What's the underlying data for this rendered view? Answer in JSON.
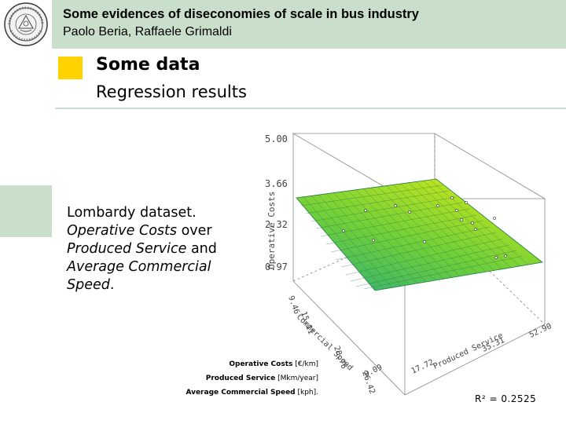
{
  "header": {
    "title": "Some evidences of diseconomies of scale in bus industry",
    "authors": "Paolo Beria, Raffaele Grimaldi"
  },
  "section": {
    "title": "Some data",
    "subtitle": "Regression results"
  },
  "description": {
    "line1": "Lombardy dataset.",
    "line2_italic": "Operative Costs",
    "line2_rest": " over",
    "line3_italic": "Produced Service",
    "line3_rest": " and",
    "line4_italic": "Average Commercial",
    "line5_italic": "Speed",
    "line5_rest": "."
  },
  "chart": {
    "type": "surface-3d",
    "z_axis_label": "Operative Costs",
    "z_ticks": [
      "5.00",
      "3.66",
      "2.32",
      "0.97"
    ],
    "y_axis_label": "Commercial Speed",
    "y_ticks": [
      "9.46",
      "15.11",
      "20.76",
      "26.42"
    ],
    "x_axis_label": "Produced Service",
    "x_ticks": [
      "0.09",
      "17.72",
      "35.31",
      "52.90"
    ],
    "surface_color_low": "#3cb371",
    "surface_color_high": "#b8e020"
  },
  "legend": {
    "line1_bold": "Operative Costs",
    "line1_unit": " [€/km]",
    "line2_bold": "Produced Service",
    "line2_unit": " [Mkm/year]",
    "line3_bold": "Average Commercial Speed",
    "line3_unit": " [kph]."
  },
  "stat": {
    "r_squared": "R² = 0.2525"
  },
  "colors": {
    "header_green": "#c9dfcb",
    "accent_yellow": "#ffd200"
  }
}
